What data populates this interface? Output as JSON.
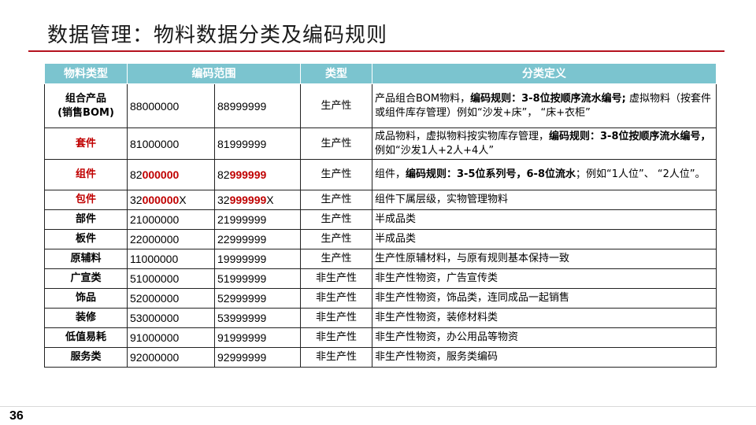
{
  "title": "数据管理：物料数据分类及编码规则",
  "page_number": "36",
  "table": {
    "headers": [
      "物料类型",
      "编码范围",
      "类型",
      "分类定义"
    ],
    "rows": [
      {
        "type_line1": "组合产品",
        "type_line2": "(销售BOM)",
        "code_from": "88000000",
        "code_to": "88999999",
        "kind": "生产性",
        "def_a": "产品组合BOM物料，",
        "def_b": "编码规则：3-8位按顺序流水编号;",
        "def_c": " 虚拟物料（按套件或组件库存管理）例如“沙发+床”，  “床+衣柜”"
      },
      {
        "type": "套件",
        "code_from": "81000000",
        "code_to": "81999999",
        "kind": "生产性",
        "def_a": "成品物料，虚拟物料按实物库存管理，",
        "def_b": "编码规则：3-8位按顺序流水编号，",
        "def_c": "例如“沙发1人+2人+4人”"
      },
      {
        "type": "组件",
        "code_from_prefix": "82",
        "code_from_red": "000000",
        "code_to_prefix": "82",
        "code_to_red": "999999",
        "kind": "生产性",
        "def_a": "组件，",
        "def_b": "编码规则：3-5位系列号，6-8位流水",
        "def_c": "；例如“1人位”、  “2人位”。"
      },
      {
        "type": "包件",
        "code_from_prefix": "32",
        "code_from_red": "000000",
        "code_from_suffix": "X",
        "code_to_prefix": "32",
        "code_to_red": "999999",
        "code_to_suffix": "X",
        "kind": "生产性",
        "def": "组件下属层级，实物管理物料"
      },
      {
        "type": "部件",
        "code_from": "21000000",
        "code_to": "21999999",
        "kind": "生产性",
        "def": "半成品类"
      },
      {
        "type": "板件",
        "code_from": "22000000",
        "code_to": "22999999",
        "kind": "生产性",
        "def": "半成品类"
      },
      {
        "type": "原辅料",
        "code_from": "11000000",
        "code_to": "19999999",
        "kind": "生产性",
        "def": "生产性原辅材料，与原有规则基本保持一致"
      },
      {
        "type": "广宣类",
        "code_from": "51000000",
        "code_to": "51999999",
        "kind": "非生产性",
        "def": "非生产性物资，广告宣传类"
      },
      {
        "type": "饰品",
        "code_from": "52000000",
        "code_to": "52999999",
        "kind": "非生产性",
        "def": "非生产性物资，饰品类，连同成品一起销售"
      },
      {
        "type": "装修",
        "code_from": "53000000",
        "code_to": "53999999",
        "kind": "非生产性",
        "def": "非生产性物资，装修材料类"
      },
      {
        "type": "低值易耗",
        "code_from": "91000000",
        "code_to": "91999999",
        "kind": "非生产性",
        "def": "非生产性物资，办公用品等物资"
      },
      {
        "type": "服务类",
        "code_from": "92000000",
        "code_to": "92999999",
        "kind": "非生产性",
        "def": "非生产性物资，服务类编码"
      }
    ]
  }
}
